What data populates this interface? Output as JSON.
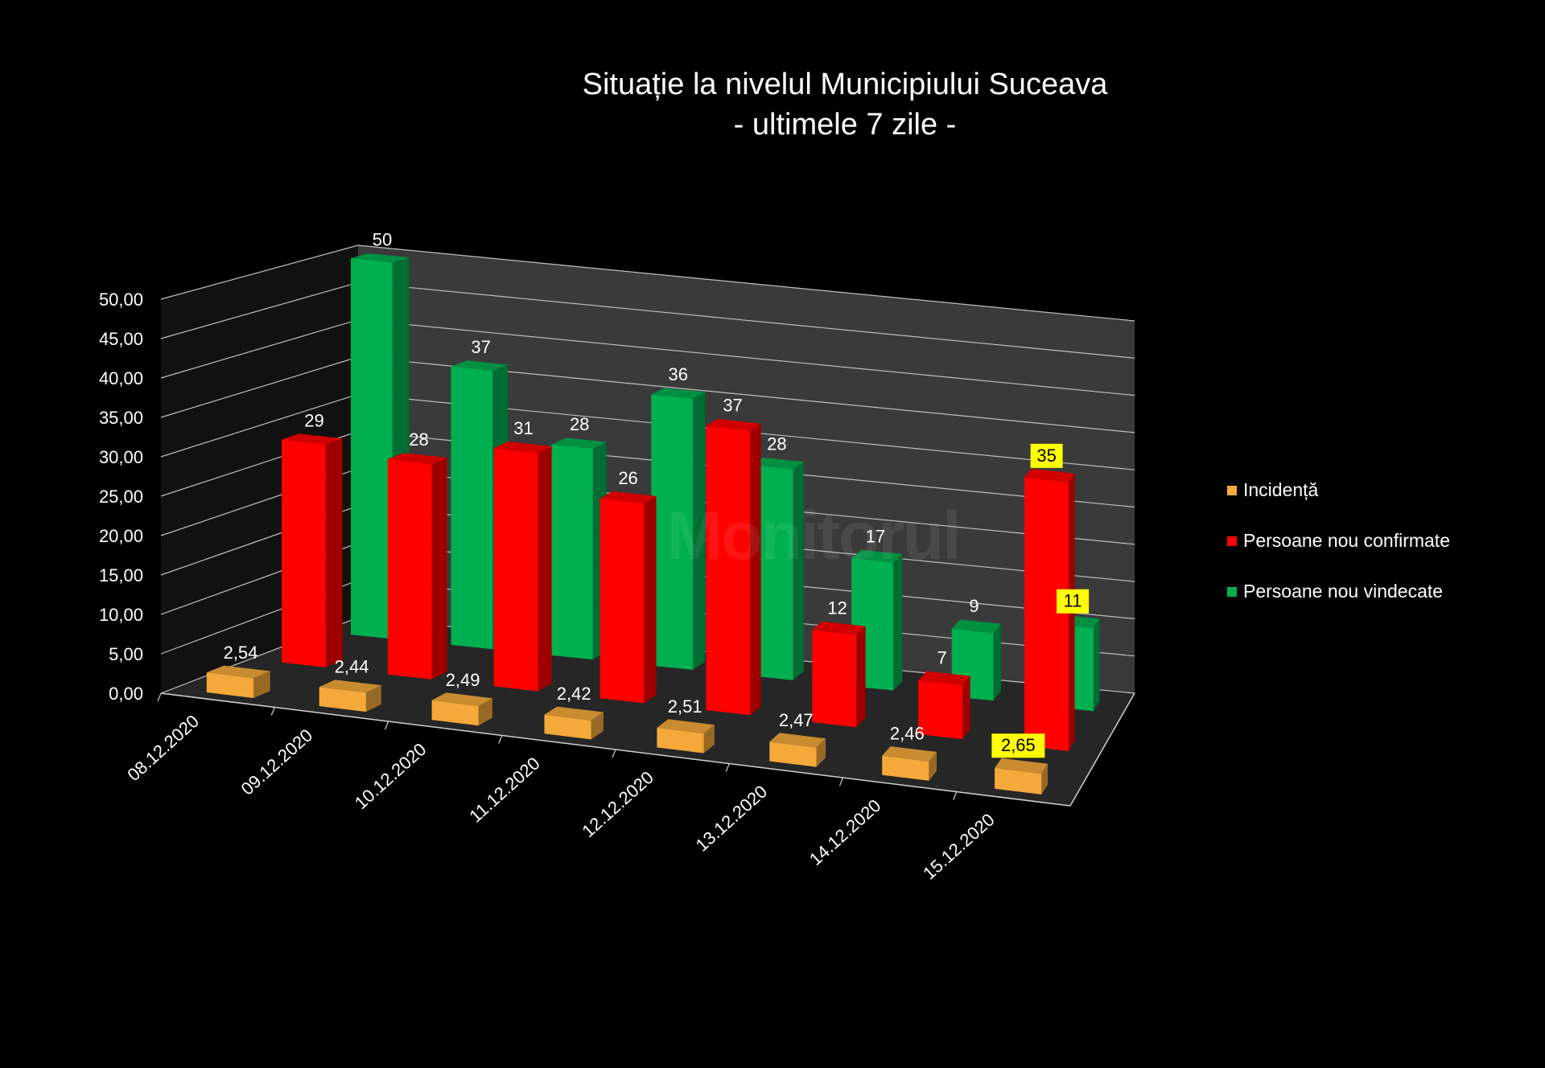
{
  "chart_data": {
    "type": "bar",
    "title": "Situație la nivelul Municipiului Suceava",
    "subtitle": "- ultimele 7 zile -",
    "categories": [
      "08.12.2020",
      "09.12.2020",
      "10.12.2020",
      "11.12.2020",
      "12.12.2020",
      "13.12.2020",
      "14.12.2020",
      "15.12.2020"
    ],
    "series": [
      {
        "name": "Incidență",
        "color": "#F5A93A",
        "values": [
          2.54,
          2.44,
          2.49,
          2.42,
          2.51,
          2.47,
          2.46,
          2.65
        ],
        "labels": [
          "2,54",
          "2,44",
          "2,49",
          "2,42",
          "2,51",
          "2,47",
          "2,46",
          "2,65"
        ]
      },
      {
        "name": "Persoane nou confirmate",
        "color": "#FF0000",
        "values": [
          29,
          28,
          31,
          26,
          37,
          12,
          7,
          35
        ],
        "labels": [
          "29",
          "28",
          "31",
          "26",
          "37",
          "12",
          "7",
          "35"
        ]
      },
      {
        "name": "Persoane nou vindecate",
        "color": "#00B050",
        "values": [
          50,
          37,
          28,
          36,
          28,
          17,
          9,
          11
        ],
        "labels": [
          "50",
          "37",
          "28",
          "36",
          "28",
          "17",
          "9",
          "11"
        ]
      }
    ],
    "highlighted_category": "15.12.2020",
    "highlight_color": "#FFFF00",
    "ylim": [
      0,
      50
    ],
    "yticks": [
      "0,00",
      "5,00",
      "10,00",
      "15,00",
      "20,00",
      "25,00",
      "30,00",
      "35,00",
      "40,00",
      "45,00",
      "50,00"
    ],
    "grid": true,
    "legend_position": "right",
    "style": "3d-column",
    "background": "#000000"
  },
  "watermark": "Monitorul"
}
